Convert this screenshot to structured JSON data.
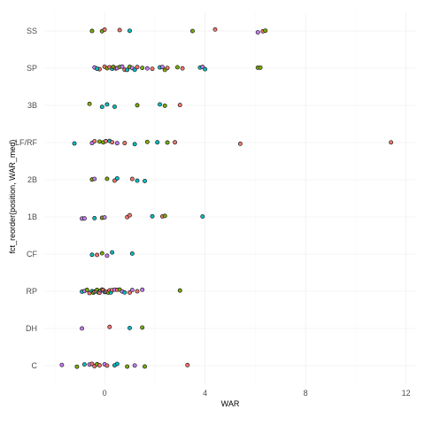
{
  "chart_data": {
    "type": "scatter",
    "title": "",
    "xlabel": "WAR",
    "ylabel": "fct_reorder(position, WAR_med)",
    "xlim": [
      -2.4,
      12.4
    ],
    "x_ticks": [
      0,
      4,
      8,
      12
    ],
    "x_tick_labels": [
      "0",
      "4",
      "8",
      "12"
    ],
    "categories": [
      "C",
      "DH",
      "RP",
      "CF",
      "1B",
      "2B",
      "LF/RF",
      "3B",
      "SP",
      "SS"
    ],
    "grid": true,
    "legend": "none",
    "palette": [
      "#F8766D",
      "#7CAE00",
      "#00BFC4",
      "#C77CFF"
    ],
    "points": [
      {
        "cat": "SS",
        "x": -0.5,
        "c": 1
      },
      {
        "cat": "SS",
        "x": -0.1,
        "c": 1
      },
      {
        "cat": "SS",
        "x": 0.0,
        "c": 0
      },
      {
        "cat": "SS",
        "x": 0.6,
        "c": 0
      },
      {
        "cat": "SS",
        "x": 1.0,
        "c": 2
      },
      {
        "cat": "SS",
        "x": 3.5,
        "c": 1
      },
      {
        "cat": "SS",
        "x": 4.4,
        "c": 0
      },
      {
        "cat": "SS",
        "x": 6.1,
        "c": 3
      },
      {
        "cat": "SS",
        "x": 6.3,
        "c": 0
      },
      {
        "cat": "SS",
        "x": 6.4,
        "c": 1
      },
      {
        "cat": "SP",
        "x": -0.4,
        "c": 3
      },
      {
        "cat": "SP",
        "x": -0.2,
        "c": 0
      },
      {
        "cat": "SP",
        "x": -0.3,
        "c": 2
      },
      {
        "cat": "SP",
        "x": 0.0,
        "c": 0
      },
      {
        "cat": "SP",
        "x": 0.1,
        "c": 1
      },
      {
        "cat": "SP",
        "x": 0.2,
        "c": 0
      },
      {
        "cat": "SP",
        "x": 0.3,
        "c": 2
      },
      {
        "cat": "SP",
        "x": 0.35,
        "c": 1
      },
      {
        "cat": "SP",
        "x": 0.45,
        "c": 0
      },
      {
        "cat": "SP",
        "x": 0.5,
        "c": 3
      },
      {
        "cat": "SP",
        "x": 0.6,
        "c": 1
      },
      {
        "cat": "SP",
        "x": 0.7,
        "c": 3
      },
      {
        "cat": "SP",
        "x": 0.8,
        "c": 0
      },
      {
        "cat": "SP",
        "x": 0.9,
        "c": 2
      },
      {
        "cat": "SP",
        "x": 1.0,
        "c": 1
      },
      {
        "cat": "SP",
        "x": 1.1,
        "c": 3
      },
      {
        "cat": "SP",
        "x": 1.2,
        "c": 2
      },
      {
        "cat": "SP",
        "x": 1.3,
        "c": 0
      },
      {
        "cat": "SP",
        "x": 1.5,
        "c": 1
      },
      {
        "cat": "SP",
        "x": 1.7,
        "c": 3
      },
      {
        "cat": "SP",
        "x": 1.9,
        "c": 0
      },
      {
        "cat": "SP",
        "x": 2.2,
        "c": 2
      },
      {
        "cat": "SP",
        "x": 2.3,
        "c": 3
      },
      {
        "cat": "SP",
        "x": 2.4,
        "c": 1
      },
      {
        "cat": "SP",
        "x": 2.5,
        "c": 0
      },
      {
        "cat": "SP",
        "x": 2.9,
        "c": 1
      },
      {
        "cat": "SP",
        "x": 3.1,
        "c": 0
      },
      {
        "cat": "SP",
        "x": 3.8,
        "c": 2
      },
      {
        "cat": "SP",
        "x": 3.9,
        "c": 3
      },
      {
        "cat": "SP",
        "x": 4.0,
        "c": 2
      },
      {
        "cat": "SP",
        "x": 6.1,
        "c": 1
      },
      {
        "cat": "SP",
        "x": 6.2,
        "c": 1
      },
      {
        "cat": "3B",
        "x": -0.6,
        "c": 1
      },
      {
        "cat": "3B",
        "x": -0.1,
        "c": 2
      },
      {
        "cat": "3B",
        "x": 0.1,
        "c": 2
      },
      {
        "cat": "3B",
        "x": 0.4,
        "c": 2
      },
      {
        "cat": "3B",
        "x": 1.3,
        "c": 1
      },
      {
        "cat": "3B",
        "x": 2.2,
        "c": 2
      },
      {
        "cat": "3B",
        "x": 2.4,
        "c": 1
      },
      {
        "cat": "3B",
        "x": 3.0,
        "c": 0
      },
      {
        "cat": "LF/RF",
        "x": -1.2,
        "c": 2
      },
      {
        "cat": "LF/RF",
        "x": -0.5,
        "c": 3
      },
      {
        "cat": "LF/RF",
        "x": -0.4,
        "c": 0
      },
      {
        "cat": "LF/RF",
        "x": -0.2,
        "c": 1
      },
      {
        "cat": "LF/RF",
        "x": -0.05,
        "c": 1
      },
      {
        "cat": "LF/RF",
        "x": 0.05,
        "c": 0
      },
      {
        "cat": "LF/RF",
        "x": 0.2,
        "c": 2
      },
      {
        "cat": "LF/RF",
        "x": 0.3,
        "c": 0
      },
      {
        "cat": "LF/RF",
        "x": 0.5,
        "c": 3
      },
      {
        "cat": "LF/RF",
        "x": 0.8,
        "c": 0
      },
      {
        "cat": "LF/RF",
        "x": 1.2,
        "c": 2
      },
      {
        "cat": "LF/RF",
        "x": 1.7,
        "c": 1
      },
      {
        "cat": "LF/RF",
        "x": 2.1,
        "c": 2
      },
      {
        "cat": "LF/RF",
        "x": 2.5,
        "c": 1
      },
      {
        "cat": "LF/RF",
        "x": 2.8,
        "c": 0
      },
      {
        "cat": "LF/RF",
        "x": 5.4,
        "c": 0
      },
      {
        "cat": "LF/RF",
        "x": 11.4,
        "c": 0
      },
      {
        "cat": "2B",
        "x": -0.5,
        "c": 1
      },
      {
        "cat": "2B",
        "x": -0.4,
        "c": 3
      },
      {
        "cat": "2B",
        "x": 0.1,
        "c": 1
      },
      {
        "cat": "2B",
        "x": 0.4,
        "c": 0
      },
      {
        "cat": "2B",
        "x": 0.5,
        "c": 2
      },
      {
        "cat": "2B",
        "x": 1.1,
        "c": 0
      },
      {
        "cat": "2B",
        "x": 1.3,
        "c": 2
      },
      {
        "cat": "2B",
        "x": 1.6,
        "c": 2
      },
      {
        "cat": "1B",
        "x": -0.9,
        "c": 3
      },
      {
        "cat": "1B",
        "x": -0.8,
        "c": 3
      },
      {
        "cat": "1B",
        "x": -0.4,
        "c": 2
      },
      {
        "cat": "1B",
        "x": -0.1,
        "c": 1
      },
      {
        "cat": "1B",
        "x": 0.0,
        "c": 3
      },
      {
        "cat": "1B",
        "x": 0.9,
        "c": 0
      },
      {
        "cat": "1B",
        "x": 1.0,
        "c": 0
      },
      {
        "cat": "1B",
        "x": 1.9,
        "c": 2
      },
      {
        "cat": "1B",
        "x": 2.3,
        "c": 0
      },
      {
        "cat": "1B",
        "x": 2.4,
        "c": 1
      },
      {
        "cat": "1B",
        "x": 3.9,
        "c": 2
      },
      {
        "cat": "CF",
        "x": -0.5,
        "c": 2
      },
      {
        "cat": "CF",
        "x": -0.3,
        "c": 0
      },
      {
        "cat": "CF",
        "x": -0.1,
        "c": 1
      },
      {
        "cat": "CF",
        "x": 0.1,
        "c": 3
      },
      {
        "cat": "CF",
        "x": 0.3,
        "c": 2
      },
      {
        "cat": "CF",
        "x": 1.1,
        "c": 2
      },
      {
        "cat": "RP",
        "x": -0.9,
        "c": 2
      },
      {
        "cat": "RP",
        "x": -0.8,
        "c": 3
      },
      {
        "cat": "RP",
        "x": -0.7,
        "c": 1
      },
      {
        "cat": "RP",
        "x": -0.6,
        "c": 0
      },
      {
        "cat": "RP",
        "x": -0.5,
        "c": 2
      },
      {
        "cat": "RP",
        "x": -0.45,
        "c": 1
      },
      {
        "cat": "RP",
        "x": -0.4,
        "c": 3
      },
      {
        "cat": "RP",
        "x": -0.35,
        "c": 0
      },
      {
        "cat": "RP",
        "x": -0.3,
        "c": 1
      },
      {
        "cat": "RP",
        "x": -0.25,
        "c": 2
      },
      {
        "cat": "RP",
        "x": -0.2,
        "c": 0
      },
      {
        "cat": "RP",
        "x": -0.15,
        "c": 3
      },
      {
        "cat": "RP",
        "x": -0.1,
        "c": 1
      },
      {
        "cat": "RP",
        "x": -0.05,
        "c": 0
      },
      {
        "cat": "RP",
        "x": 0.0,
        "c": 2
      },
      {
        "cat": "RP",
        "x": 0.05,
        "c": 3
      },
      {
        "cat": "RP",
        "x": 0.1,
        "c": 0
      },
      {
        "cat": "RP",
        "x": 0.15,
        "c": 1
      },
      {
        "cat": "RP",
        "x": 0.2,
        "c": 0
      },
      {
        "cat": "RP",
        "x": 0.25,
        "c": 2
      },
      {
        "cat": "RP",
        "x": 0.3,
        "c": 0
      },
      {
        "cat": "RP",
        "x": 0.4,
        "c": 3
      },
      {
        "cat": "RP",
        "x": 0.5,
        "c": 0
      },
      {
        "cat": "RP",
        "x": 0.6,
        "c": 1
      },
      {
        "cat": "RP",
        "x": 0.7,
        "c": 3
      },
      {
        "cat": "RP",
        "x": 0.8,
        "c": 2
      },
      {
        "cat": "RP",
        "x": 1.0,
        "c": 0
      },
      {
        "cat": "RP",
        "x": 1.1,
        "c": 3
      },
      {
        "cat": "RP",
        "x": 1.3,
        "c": 0
      },
      {
        "cat": "RP",
        "x": 1.5,
        "c": 3
      },
      {
        "cat": "RP",
        "x": 3.0,
        "c": 1
      },
      {
        "cat": "DH",
        "x": -0.9,
        "c": 3
      },
      {
        "cat": "DH",
        "x": 0.2,
        "c": 0
      },
      {
        "cat": "DH",
        "x": 1.0,
        "c": 2
      },
      {
        "cat": "DH",
        "x": 1.5,
        "c": 1
      },
      {
        "cat": "C",
        "x": -1.7,
        "c": 3
      },
      {
        "cat": "C",
        "x": -1.1,
        "c": 1
      },
      {
        "cat": "C",
        "x": -0.8,
        "c": 2
      },
      {
        "cat": "C",
        "x": -0.6,
        "c": 3
      },
      {
        "cat": "C",
        "x": -0.5,
        "c": 0
      },
      {
        "cat": "C",
        "x": -0.4,
        "c": 0
      },
      {
        "cat": "C",
        "x": -0.3,
        "c": 1
      },
      {
        "cat": "C",
        "x": -0.2,
        "c": 0
      },
      {
        "cat": "C",
        "x": 0.0,
        "c": 3
      },
      {
        "cat": "C",
        "x": 0.1,
        "c": 0
      },
      {
        "cat": "C",
        "x": 0.4,
        "c": 2
      },
      {
        "cat": "C",
        "x": 0.5,
        "c": 2
      },
      {
        "cat": "C",
        "x": 0.9,
        "c": 1
      },
      {
        "cat": "C",
        "x": 1.2,
        "c": 3
      },
      {
        "cat": "C",
        "x": 1.6,
        "c": 1
      },
      {
        "cat": "C",
        "x": 3.3,
        "c": 0
      }
    ]
  }
}
